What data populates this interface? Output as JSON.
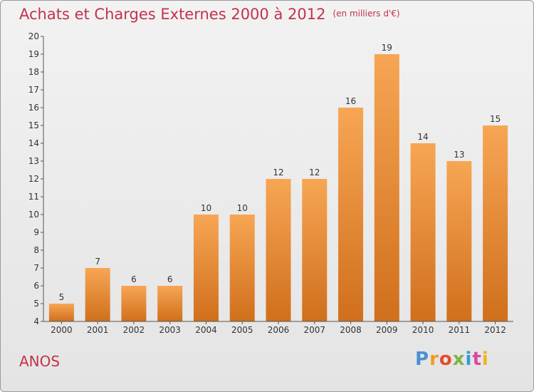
{
  "chart_data": {
    "type": "bar",
    "title": "Achats et Charges Externes 2000 à 2012",
    "subtitle": "(en milliers d'€)",
    "categories": [
      "2000",
      "2001",
      "2002",
      "2003",
      "2004",
      "2005",
      "2006",
      "2007",
      "2008",
      "2009",
      "2010",
      "2011",
      "2012"
    ],
    "values": [
      5,
      7,
      6,
      6,
      10,
      10,
      12,
      12,
      16,
      19,
      14,
      13,
      15
    ],
    "ylim": [
      4,
      20
    ],
    "yticks": [
      4,
      5,
      6,
      7,
      8,
      9,
      10,
      11,
      12,
      13,
      14,
      15,
      16,
      17,
      18,
      19,
      20
    ],
    "grid": false,
    "bar_color_top": "#f7a654",
    "bar_color_bottom": "#d06f1c"
  },
  "footer": {
    "location": "ANOS",
    "logo_text": "Proxiti",
    "logo_colors": [
      "#4a8fd4",
      "#f29a1f",
      "#e84b2b",
      "#7ab648",
      "#2e9ed8",
      "#d84b9a",
      "#f2b21f"
    ]
  },
  "colors": {
    "title": "#c4324a"
  }
}
